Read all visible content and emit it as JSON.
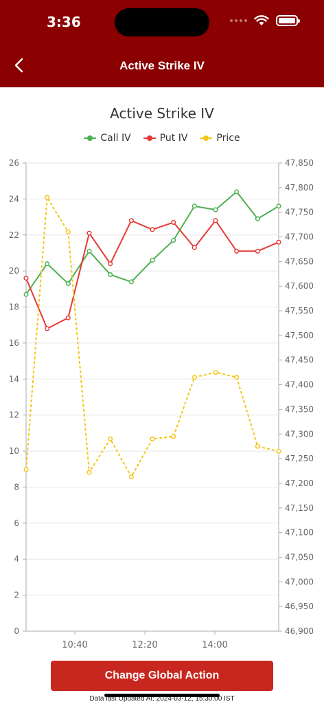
{
  "status_bar": {
    "time": "3:36"
  },
  "header": {
    "title": "Active Strike IV"
  },
  "colors": {
    "header_bg": "#8b0000",
    "call": "#4caf50",
    "put": "#e53935",
    "price": "#f5c518",
    "button": "#c8271f"
  },
  "legend": [
    {
      "label": "Call IV",
      "color": "#4caf50"
    },
    {
      "label": "Put IV",
      "color": "#e53935"
    },
    {
      "label": "Price",
      "color": "#f5c518"
    }
  ],
  "chart_data": {
    "type": "line",
    "title": "Active Strike IV",
    "x_ticks": [
      "10:40",
      "12:20",
      "14:00"
    ],
    "left_axis": {
      "range": [
        0,
        26
      ],
      "ticks": [
        "0",
        "2",
        "4",
        "6",
        "8",
        "10",
        "12",
        "14",
        "16",
        "18",
        "20",
        "22",
        "24",
        "26"
      ]
    },
    "right_axis": {
      "range": [
        46900,
        47850
      ],
      "ticks": [
        "46,900",
        "46,950",
        "47,000",
        "47,050",
        "47,100",
        "47,150",
        "47,200",
        "47,250",
        "47,300",
        "47,350",
        "47,400",
        "47,450",
        "47,500",
        "47,550",
        "47,600",
        "47,650",
        "47,700",
        "47,750",
        "47,800",
        "47,850"
      ]
    },
    "grid": "horizontal",
    "series": [
      {
        "name": "Call IV",
        "axis": "left",
        "values": [
          18.7,
          20.4,
          19.3,
          21.1,
          19.8,
          19.4,
          20.6,
          21.7,
          23.6,
          23.4,
          24.4,
          22.9,
          23.6
        ]
      },
      {
        "name": "Put IV",
        "axis": "left",
        "values": [
          19.6,
          16.8,
          17.4,
          22.1,
          20.4,
          22.8,
          22.3,
          22.7,
          21.3,
          22.8,
          21.1,
          21.1,
          21.6
        ]
      },
      {
        "name": "Price",
        "axis": "right",
        "values": [
          47228,
          47780,
          47710,
          47222,
          47290,
          47213,
          47290,
          47295,
          47415,
          47425,
          47415,
          47275,
          47265
        ]
      }
    ]
  },
  "action_button": {
    "label": "Change Global Action"
  },
  "footer": {
    "updated": "Data last Updated At: 2024-03-12, 15:30:00 IST"
  }
}
